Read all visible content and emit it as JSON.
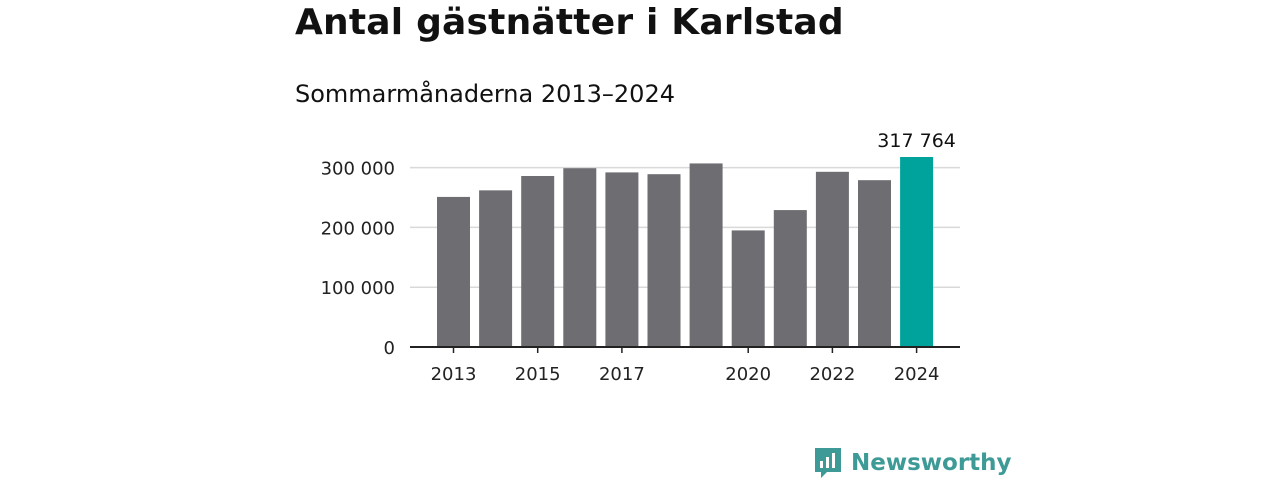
{
  "chart_data": {
    "type": "bar",
    "title": "Antal gästnätter i Karlstad",
    "subtitle": "Sommarmånaderna 2013–2024",
    "categories": [
      "2013",
      "2014",
      "2015",
      "2016",
      "2017",
      "2018",
      "2019",
      "2020",
      "2021",
      "2022",
      "2023",
      "2024"
    ],
    "tick_labels": [
      "2013",
      "",
      "2015",
      "",
      "2017",
      "",
      "",
      "2020",
      "",
      "2022",
      "",
      "2024"
    ],
    "values": [
      251000,
      262000,
      286000,
      299000,
      292000,
      289000,
      307000,
      195000,
      229000,
      293000,
      279000,
      317764
    ],
    "ylim": [
      0,
      320000
    ],
    "yticks": [
      0,
      100000,
      200000,
      300000
    ],
    "ytick_labels": [
      "0",
      "100 000",
      "200 000",
      "300 000"
    ],
    "highlight_index": 11,
    "highlight_label": "317 764",
    "xlabel": "",
    "ylabel": "",
    "grid": true,
    "colors": {
      "bar": "#6e6d72",
      "highlight": "#00a39b",
      "grid": "#d9d9d9",
      "axis": "#222222"
    }
  },
  "branding": {
    "logo_text": "Newsworthy",
    "logo_icon": "bar-chart-speech-bubble-icon",
    "logo_color": "#3d9a97"
  }
}
